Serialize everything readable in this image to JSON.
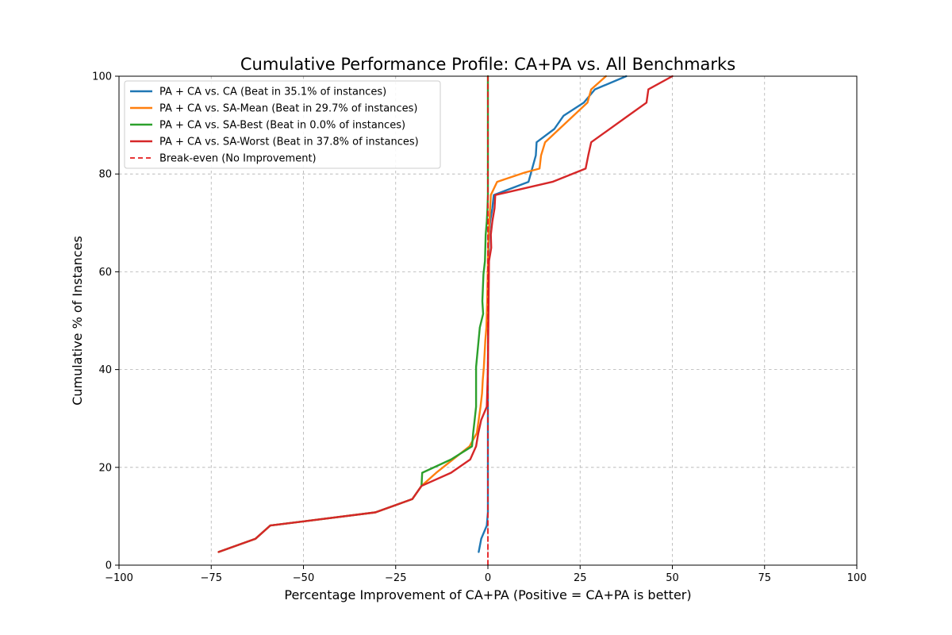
{
  "chart_data": {
    "type": "line",
    "title": "Cumulative Performance Profile: CA+PA vs. All Benchmarks",
    "xlabel": "Percentage Improvement of CA+PA (Positive = CA+PA is better)",
    "ylabel": "Cumulative % of Instances",
    "xlim": [
      -100,
      100
    ],
    "ylim": [
      0,
      100
    ],
    "xticks": [
      -100,
      -75,
      -50,
      -25,
      0,
      25,
      50,
      75,
      100
    ],
    "xtick_labels": [
      "−100",
      "−75",
      "−50",
      "−25",
      "0",
      "25",
      "50",
      "75",
      "100"
    ],
    "yticks": [
      0,
      20,
      40,
      60,
      80,
      100
    ],
    "ytick_labels": [
      "0",
      "20",
      "40",
      "60",
      "80",
      "100"
    ],
    "grid": true,
    "legend_position": "top-left",
    "series": [
      {
        "name": "PA + CA vs. CA (Beat in 35.1% of instances)",
        "color": "#1f77b4",
        "style": "solid",
        "points": [
          [
            -2.5,
            2.7
          ],
          [
            -1.8,
            5.4
          ],
          [
            -0.3,
            8.1
          ],
          [
            0,
            10.8
          ],
          [
            0,
            40
          ],
          [
            0.1,
            60
          ],
          [
            0.3,
            67.6
          ],
          [
            0.6,
            70.3
          ],
          [
            1.2,
            73
          ],
          [
            1.6,
            75.7
          ],
          [
            11,
            78.4
          ],
          [
            12,
            81.1
          ],
          [
            13,
            83.8
          ],
          [
            13.2,
            86.5
          ],
          [
            18,
            89.2
          ],
          [
            20.5,
            91.9
          ],
          [
            26,
            94.6
          ],
          [
            29,
            97.3
          ],
          [
            37.5,
            100
          ]
        ]
      },
      {
        "name": "PA + CA vs. SA-Mean (Beat in 29.7% of instances)",
        "color": "#ff7f0e",
        "style": "solid",
        "points": [
          [
            -73,
            2.7
          ],
          [
            -63,
            5.4
          ],
          [
            -59,
            8.1
          ],
          [
            -30.5,
            10.8
          ],
          [
            -20.5,
            13.5
          ],
          [
            -18,
            16.2
          ],
          [
            -14,
            18.9
          ],
          [
            -9.5,
            21.6
          ],
          [
            -5,
            24.3
          ],
          [
            -3,
            27
          ],
          [
            -2.5,
            29.7
          ],
          [
            -2,
            32.4
          ],
          [
            -1.6,
            35.1
          ],
          [
            -1.4,
            37.8
          ],
          [
            -1.1,
            40.5
          ],
          [
            -0.9,
            43.2
          ],
          [
            -0.7,
            45.9
          ],
          [
            -0.4,
            48.6
          ],
          [
            -0.2,
            54
          ],
          [
            0,
            62
          ],
          [
            0.2,
            67.6
          ],
          [
            0.4,
            70.3
          ],
          [
            0.6,
            73
          ],
          [
            0.8,
            75.7
          ],
          [
            2.5,
            78.4
          ],
          [
            10,
            80.3
          ],
          [
            14,
            81.1
          ],
          [
            14.4,
            83.8
          ],
          [
            15.5,
            86.5
          ],
          [
            27,
            94.6
          ],
          [
            28,
            97.3
          ],
          [
            32,
            100
          ]
        ]
      },
      {
        "name": "PA + CA vs. SA-Best (Beat in 0.0% of instances)",
        "color": "#2ca02c",
        "style": "solid",
        "points": [
          [
            -73,
            2.7
          ],
          [
            -63,
            5.4
          ],
          [
            -59,
            8.1
          ],
          [
            -30.5,
            10.8
          ],
          [
            -20.5,
            13.5
          ],
          [
            -18,
            16.2
          ],
          [
            -17.8,
            18.9
          ],
          [
            -10,
            21.6
          ],
          [
            -4.3,
            24.3
          ],
          [
            -4,
            27
          ],
          [
            -3.6,
            29.7
          ],
          [
            -3.2,
            32.4
          ],
          [
            -3.2,
            40.5
          ],
          [
            -2.2,
            48.6
          ],
          [
            -1.3,
            51.4
          ],
          [
            -1.5,
            54
          ],
          [
            -1.2,
            59.5
          ],
          [
            -0.8,
            62.2
          ],
          [
            -0.6,
            67.6
          ],
          [
            -0.3,
            70.3
          ],
          [
            -0.1,
            73
          ],
          [
            0,
            75.7
          ],
          [
            0,
            100
          ]
        ]
      },
      {
        "name": "PA + CA vs. SA-Worst (Beat in 37.8% of instances)",
        "color": "#d62728",
        "style": "solid",
        "points": [
          [
            -73,
            2.7
          ],
          [
            -63,
            5.4
          ],
          [
            -59,
            8.1
          ],
          [
            -30.5,
            10.8
          ],
          [
            -20.5,
            13.5
          ],
          [
            -18,
            16.2
          ],
          [
            -10,
            18.9
          ],
          [
            -4.8,
            21.6
          ],
          [
            -3.2,
            24.3
          ],
          [
            -2.6,
            27
          ],
          [
            -1.8,
            29.7
          ],
          [
            -0.3,
            32.4
          ],
          [
            0,
            40
          ],
          [
            0.3,
            62.2
          ],
          [
            0.9,
            64.9
          ],
          [
            0.8,
            67.6
          ],
          [
            1.2,
            70.3
          ],
          [
            1.8,
            73
          ],
          [
            2,
            75.7
          ],
          [
            17.5,
            78.4
          ],
          [
            26.5,
            81.1
          ],
          [
            27.2,
            83.8
          ],
          [
            28,
            86.5
          ],
          [
            38,
            91.9
          ],
          [
            43,
            94.6
          ],
          [
            43.5,
            97.3
          ],
          [
            50,
            100
          ]
        ]
      },
      {
        "name": "Break-even (No Improvement)",
        "color": "#e41a1c",
        "style": "dashed",
        "points": [
          [
            0,
            0
          ],
          [
            0,
            100
          ]
        ]
      }
    ]
  }
}
